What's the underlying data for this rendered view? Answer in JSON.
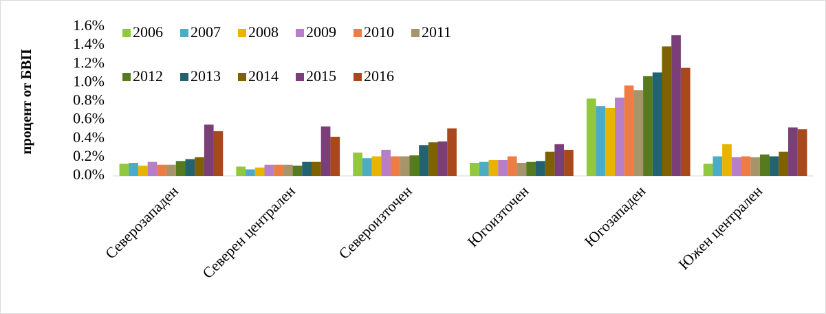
{
  "chart_data": {
    "type": "bar",
    "y_label": "процент от БВП",
    "categories": [
      "Северозападен",
      "Северен централен",
      "Североизточен",
      "Югоизточен",
      "Югозападен",
      "Южен централен"
    ],
    "series": [
      {
        "name": "2006",
        "color": "#92c83e",
        "values": [
          0.13,
          0.1,
          0.25,
          0.14,
          0.83,
          0.13
        ]
      },
      {
        "name": "2007",
        "color": "#4bacc6",
        "values": [
          0.14,
          0.07,
          0.19,
          0.15,
          0.75,
          0.21
        ]
      },
      {
        "name": "2008",
        "color": "#e8b400",
        "values": [
          0.11,
          0.09,
          0.21,
          0.17,
          0.73,
          0.34
        ]
      },
      {
        "name": "2009",
        "color": "#b77fc6",
        "values": [
          0.15,
          0.12,
          0.28,
          0.17,
          0.84,
          0.2
        ]
      },
      {
        "name": "2010",
        "color": "#ed7d45",
        "values": [
          0.12,
          0.12,
          0.21,
          0.21,
          0.97,
          0.21
        ]
      },
      {
        "name": "2011",
        "color": "#a8946a",
        "values": [
          0.12,
          0.12,
          0.21,
          0.14,
          0.92,
          0.2
        ]
      },
      {
        "name": "2012",
        "color": "#567a1e",
        "values": [
          0.16,
          0.11,
          0.22,
          0.15,
          1.07,
          0.23
        ]
      },
      {
        "name": "2013",
        "color": "#22636f",
        "values": [
          0.18,
          0.15,
          0.33,
          0.16,
          1.11,
          0.21
        ]
      },
      {
        "name": "2014",
        "color": "#7f6200",
        "values": [
          0.2,
          0.15,
          0.36,
          0.26,
          1.39,
          0.26
        ]
      },
      {
        "name": "2015",
        "color": "#7a3f78",
        "values": [
          0.55,
          0.53,
          0.37,
          0.34,
          1.51,
          0.52
        ]
      },
      {
        "name": "2016",
        "color": "#a8481c",
        "values": [
          0.48,
          0.42,
          0.51,
          0.28,
          1.16,
          0.5
        ]
      }
    ],
    "ylim": [
      0,
      1.6
    ],
    "yticks": [
      {
        "value": 0,
        "label": "0.0%"
      },
      {
        "value": 0.2,
        "label": "0.2%"
      },
      {
        "value": 0.4,
        "label": "0.4%"
      },
      {
        "value": 0.6,
        "label": "0.6%"
      },
      {
        "value": 0.8,
        "label": "0.8%"
      },
      {
        "value": 1.0,
        "label": "1.0%"
      },
      {
        "value": 1.2,
        "label": "1.2%"
      },
      {
        "value": 1.4,
        "label": "1.4%"
      },
      {
        "value": 1.6,
        "label": "1.6%"
      }
    ],
    "legend": "top-left",
    "grid": false
  }
}
